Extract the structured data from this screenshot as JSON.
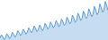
{
  "chart_data": {
    "type": "area",
    "values": [
      55,
      62,
      58,
      52,
      56,
      64,
      60,
      54,
      58,
      67,
      63,
      57,
      61,
      70,
      66,
      60,
      64,
      73,
      69,
      63,
      67,
      76,
      72,
      66,
      70,
      80,
      75,
      68,
      72,
      82,
      77,
      70,
      74,
      85,
      80,
      73,
      77,
      88,
      83,
      76,
      80,
      91,
      86,
      78,
      82,
      94,
      89,
      81,
      85,
      98,
      92,
      84,
      88,
      102,
      96,
      87,
      91,
      106,
      100,
      91,
      95,
      110,
      104,
      95,
      99,
      115,
      108,
      99,
      103,
      120,
      113,
      103,
      107,
      125,
      118,
      108,
      112,
      130,
      122,
      112
    ],
    "color": "#5b9bd5",
    "xlim": [
      0,
      79
    ],
    "ylim": [
      51,
      133
    ],
    "grid": false,
    "tick_labels": false
  }
}
